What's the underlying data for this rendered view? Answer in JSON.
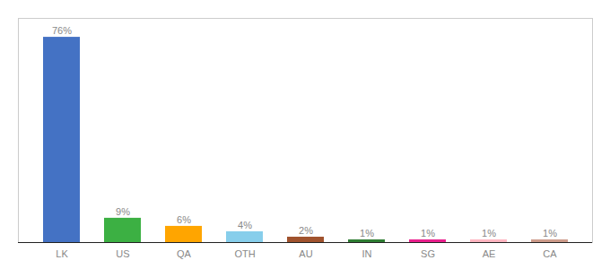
{
  "chart_data": {
    "type": "bar",
    "categories": [
      "LK",
      "US",
      "QA",
      "OTH",
      "AU",
      "IN",
      "SG",
      "AE",
      "CA"
    ],
    "values": [
      76,
      9,
      6,
      4,
      2,
      1,
      1,
      1,
      1
    ],
    "value_labels": [
      "76%",
      "9%",
      "6%",
      "4%",
      "2%",
      "1%",
      "1%",
      "1%",
      "1%"
    ],
    "colors": [
      "#4472c4",
      "#3cb043",
      "#ffa500",
      "#87ceeb",
      "#a0522d",
      "#2e7d32",
      "#e91e8c",
      "#ffb6c1",
      "#cd9b8a"
    ],
    "ylim": [
      0,
      83
    ],
    "data_labels": true,
    "tick_labels": "x"
  }
}
